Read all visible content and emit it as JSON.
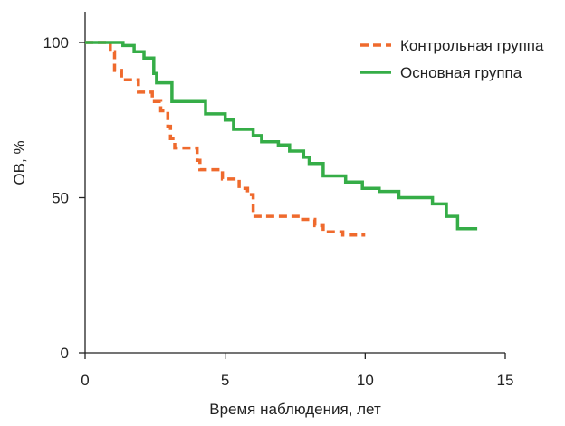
{
  "chart_data": {
    "type": "line",
    "title": "",
    "xlabel": "Время наблюдения, лет",
    "ylabel": "ОВ, %",
    "xlim": [
      0,
      15
    ],
    "ylim": [
      0,
      100
    ],
    "xticks": [
      "0",
      "5",
      "10",
      "15"
    ],
    "yticks": [
      "0",
      "50",
      "100"
    ],
    "grid": false,
    "legend_position": "top-right",
    "step": true,
    "series": [
      {
        "name": "Контрольная группа",
        "color": "#ef6a2d",
        "dash": "dashed",
        "points": [
          [
            0,
            100
          ],
          [
            0.9,
            100
          ],
          [
            0.9,
            97
          ],
          [
            1.05,
            97
          ],
          [
            1.05,
            91
          ],
          [
            1.3,
            91
          ],
          [
            1.3,
            88
          ],
          [
            1.9,
            88
          ],
          [
            1.9,
            84
          ],
          [
            2.4,
            84
          ],
          [
            2.4,
            81
          ],
          [
            2.7,
            81
          ],
          [
            2.7,
            78
          ],
          [
            2.95,
            78
          ],
          [
            2.95,
            73
          ],
          [
            3.05,
            73
          ],
          [
            3.05,
            69
          ],
          [
            3.2,
            69
          ],
          [
            3.2,
            66
          ],
          [
            4.0,
            66
          ],
          [
            4.0,
            62
          ],
          [
            4.1,
            62
          ],
          [
            4.1,
            59
          ],
          [
            4.9,
            59
          ],
          [
            4.9,
            56
          ],
          [
            5.5,
            56
          ],
          [
            5.5,
            53
          ],
          [
            5.8,
            53
          ],
          [
            5.8,
            51
          ],
          [
            6.0,
            51
          ],
          [
            6.0,
            44
          ],
          [
            7.6,
            44
          ],
          [
            7.6,
            43
          ],
          [
            8.2,
            43
          ],
          [
            8.2,
            41
          ],
          [
            8.5,
            41
          ],
          [
            8.5,
            39
          ],
          [
            9.2,
            39
          ],
          [
            9.2,
            38
          ],
          [
            10.0,
            38
          ]
        ]
      },
      {
        "name": "Основная группа",
        "color": "#35ad47",
        "dash": "solid",
        "points": [
          [
            0,
            100
          ],
          [
            1.35,
            100
          ],
          [
            1.35,
            99
          ],
          [
            1.75,
            99
          ],
          [
            1.75,
            97
          ],
          [
            2.1,
            97
          ],
          [
            2.1,
            95
          ],
          [
            2.45,
            95
          ],
          [
            2.45,
            90
          ],
          [
            2.55,
            90
          ],
          [
            2.55,
            87
          ],
          [
            3.1,
            87
          ],
          [
            3.1,
            81
          ],
          [
            4.3,
            81
          ],
          [
            4.3,
            77
          ],
          [
            5.0,
            77
          ],
          [
            5.0,
            75
          ],
          [
            5.3,
            75
          ],
          [
            5.3,
            72
          ],
          [
            6.0,
            72
          ],
          [
            6.0,
            70
          ],
          [
            6.3,
            70
          ],
          [
            6.3,
            68
          ],
          [
            6.9,
            68
          ],
          [
            6.9,
            67
          ],
          [
            7.3,
            67
          ],
          [
            7.3,
            65
          ],
          [
            7.8,
            65
          ],
          [
            7.8,
            63
          ],
          [
            8.0,
            63
          ],
          [
            8.0,
            61
          ],
          [
            8.5,
            61
          ],
          [
            8.5,
            57
          ],
          [
            9.3,
            57
          ],
          [
            9.3,
            55
          ],
          [
            9.9,
            55
          ],
          [
            9.9,
            53
          ],
          [
            10.5,
            53
          ],
          [
            10.5,
            52
          ],
          [
            11.2,
            52
          ],
          [
            11.2,
            50
          ],
          [
            12.4,
            50
          ],
          [
            12.4,
            48
          ],
          [
            12.9,
            48
          ],
          [
            12.9,
            44
          ],
          [
            13.3,
            44
          ],
          [
            13.3,
            40
          ],
          [
            14.0,
            40
          ]
        ]
      }
    ]
  }
}
